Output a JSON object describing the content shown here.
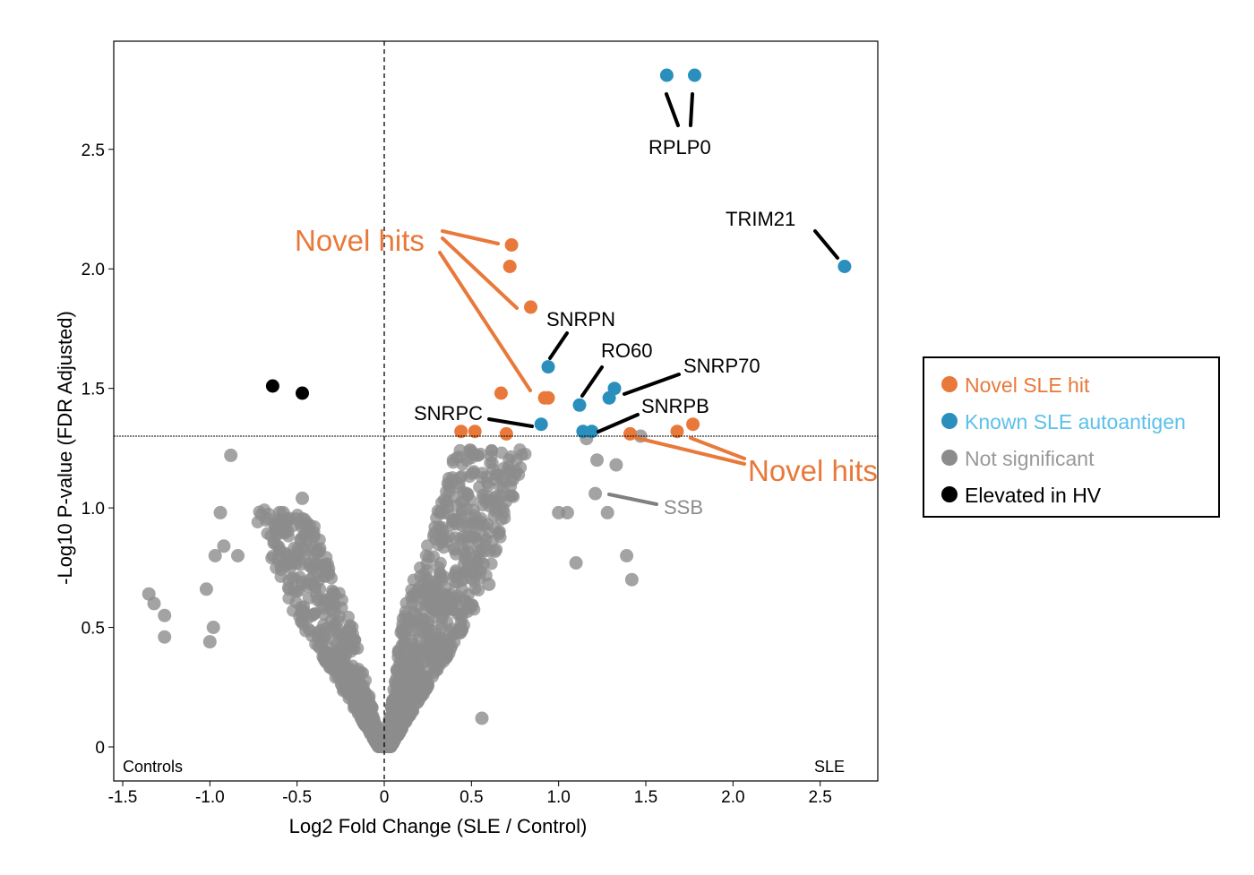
{
  "chart_data": {
    "type": "scatter",
    "title": "",
    "xlabel": "Log2 Fold Change (SLE / Control)",
    "ylabel": "-Log10 P-value (FDR Adjusted)",
    "xlim": [
      -1.55,
      2.85
    ],
    "ylim": [
      -0.14,
      2.9
    ],
    "xticks": [
      "-1.5",
      "-1.0",
      "-0.5",
      "0",
      "0.5",
      "1.0",
      "1.5",
      "2.0",
      "2.5"
    ],
    "xtick_values": [
      -1.5,
      -1.0,
      -0.5,
      0,
      0.5,
      1.0,
      1.5,
      2.0,
      2.5
    ],
    "yticks": [
      "0",
      "0.5",
      "1.0",
      "1.5",
      "2.0",
      "2.5"
    ],
    "ytick_values": [
      0,
      0.5,
      1.0,
      1.5,
      2.0,
      2.5
    ],
    "significance_threshold_y": 1.3,
    "vertical_reference_x": 0,
    "corner_labels": {
      "left": "Controls",
      "right": "SLE"
    },
    "grid": false,
    "legend_position": "right",
    "colors": {
      "novel": "#e8793a",
      "known": "#2b8fbd",
      "ns": "#8c8c8c",
      "hv": "#000000",
      "known_text": "#5bc0eb",
      "ns_text": "#999999"
    },
    "series": [
      {
        "name": "Novel SLE hit",
        "color_key": "novel",
        "points": [
          [
            0.73,
            2.1
          ],
          [
            0.72,
            2.01
          ],
          [
            0.84,
            1.84
          ],
          [
            0.67,
            1.48
          ],
          [
            0.94,
            1.46
          ],
          [
            0.92,
            1.46
          ],
          [
            0.44,
            1.32
          ],
          [
            0.52,
            1.32
          ],
          [
            0.7,
            1.31
          ],
          [
            1.41,
            1.31
          ],
          [
            1.68,
            1.32
          ],
          [
            1.77,
            1.35
          ]
        ]
      },
      {
        "name": "Known SLE autoantigen",
        "color_key": "known",
        "points": [
          [
            1.62,
            2.81
          ],
          [
            1.78,
            2.81
          ],
          [
            2.64,
            2.01
          ],
          [
            0.94,
            1.59
          ],
          [
            1.12,
            1.43
          ],
          [
            1.32,
            1.5
          ],
          [
            1.29,
            1.46
          ],
          [
            0.9,
            1.35
          ],
          [
            1.14,
            1.32
          ],
          [
            1.19,
            1.32
          ]
        ]
      },
      {
        "name": "Not significant",
        "color_key": "ns",
        "note": "bulk cloud rendered from summary; explicit outliers listed",
        "points": [
          [
            -1.35,
            0.64
          ],
          [
            -1.32,
            0.6
          ],
          [
            -1.26,
            0.55
          ],
          [
            -1.26,
            0.46
          ],
          [
            -0.88,
            1.22
          ],
          [
            -0.94,
            0.98
          ],
          [
            -0.47,
            1.04
          ],
          [
            -0.58,
            0.98
          ],
          [
            -0.6,
            0.98
          ],
          [
            -0.97,
            0.8
          ],
          [
            -0.92,
            0.84
          ],
          [
            -0.84,
            0.8
          ],
          [
            -1.02,
            0.66
          ],
          [
            -0.98,
            0.5
          ],
          [
            -1.0,
            0.44
          ],
          [
            1.21,
            1.06
          ],
          [
            1.28,
            0.98
          ],
          [
            1.39,
            0.8
          ],
          [
            1.42,
            0.7
          ],
          [
            1.1,
            0.77
          ],
          [
            1.05,
            0.98
          ],
          [
            1.0,
            0.98
          ],
          [
            1.16,
            1.29
          ],
          [
            1.47,
            1.3
          ],
          [
            1.22,
            1.2
          ],
          [
            1.33,
            1.18
          ],
          [
            0.56,
            0.12
          ],
          [
            0.6,
            0.68
          ],
          [
            0.48,
            0.85
          ],
          [
            0.32,
            0.98
          ]
        ]
      },
      {
        "name": "Elevated in HV",
        "color_key": "hv",
        "points": [
          [
            -0.64,
            1.51
          ],
          [
            -0.47,
            1.48
          ]
        ]
      }
    ],
    "annotations": [
      {
        "text": "RPLP0",
        "target_series": "Known SLE autoantigen",
        "targets": [
          [
            1.62,
            2.81
          ],
          [
            1.78,
            2.81
          ]
        ]
      },
      {
        "text": "TRIM21",
        "target_series": "Known SLE autoantigen",
        "targets": [
          [
            2.64,
            2.01
          ]
        ]
      },
      {
        "text": "SNRPN",
        "target_series": "Known SLE autoantigen",
        "targets": [
          [
            0.94,
            1.59
          ]
        ]
      },
      {
        "text": "RO60",
        "target_series": "Known SLE autoantigen",
        "targets": [
          [
            1.12,
            1.43
          ]
        ]
      },
      {
        "text": "SNRP70",
        "target_series": "Known SLE autoantigen",
        "targets": [
          [
            1.32,
            1.5
          ]
        ]
      },
      {
        "text": "SNRPB",
        "target_series": "Known SLE autoantigen",
        "targets": [
          [
            1.19,
            1.32
          ]
        ]
      },
      {
        "text": "SNRPC",
        "target_series": "Known SLE autoantigen",
        "targets": [
          [
            0.9,
            1.35
          ]
        ]
      },
      {
        "text": "SSB",
        "target_series": "Not significant",
        "targets": [
          [
            1.21,
            1.06
          ]
        ]
      },
      {
        "text": "Novel hits",
        "target_series": "Novel SLE hit",
        "targets": [
          [
            0.73,
            2.1
          ],
          [
            0.72,
            2.01
          ],
          [
            0.84,
            1.84
          ],
          [
            0.93,
            1.46
          ]
        ]
      },
      {
        "text": "Novel hits",
        "target_series": "Novel SLE hit",
        "targets": [
          [
            1.41,
            1.31
          ],
          [
            1.68,
            1.32
          ]
        ]
      }
    ]
  },
  "legend": {
    "items": [
      {
        "label": "Novel SLE hit",
        "color_key": "novel",
        "text_color_key": "novel"
      },
      {
        "label": "Known SLE autoantigen",
        "color_key": "known",
        "text_color_key": "known_text"
      },
      {
        "label": "Not significant",
        "color_key": "ns",
        "text_color_key": "ns_text"
      },
      {
        "label": "Elevated in HV",
        "color_key": "hv",
        "text_color_key": "hv"
      }
    ]
  }
}
